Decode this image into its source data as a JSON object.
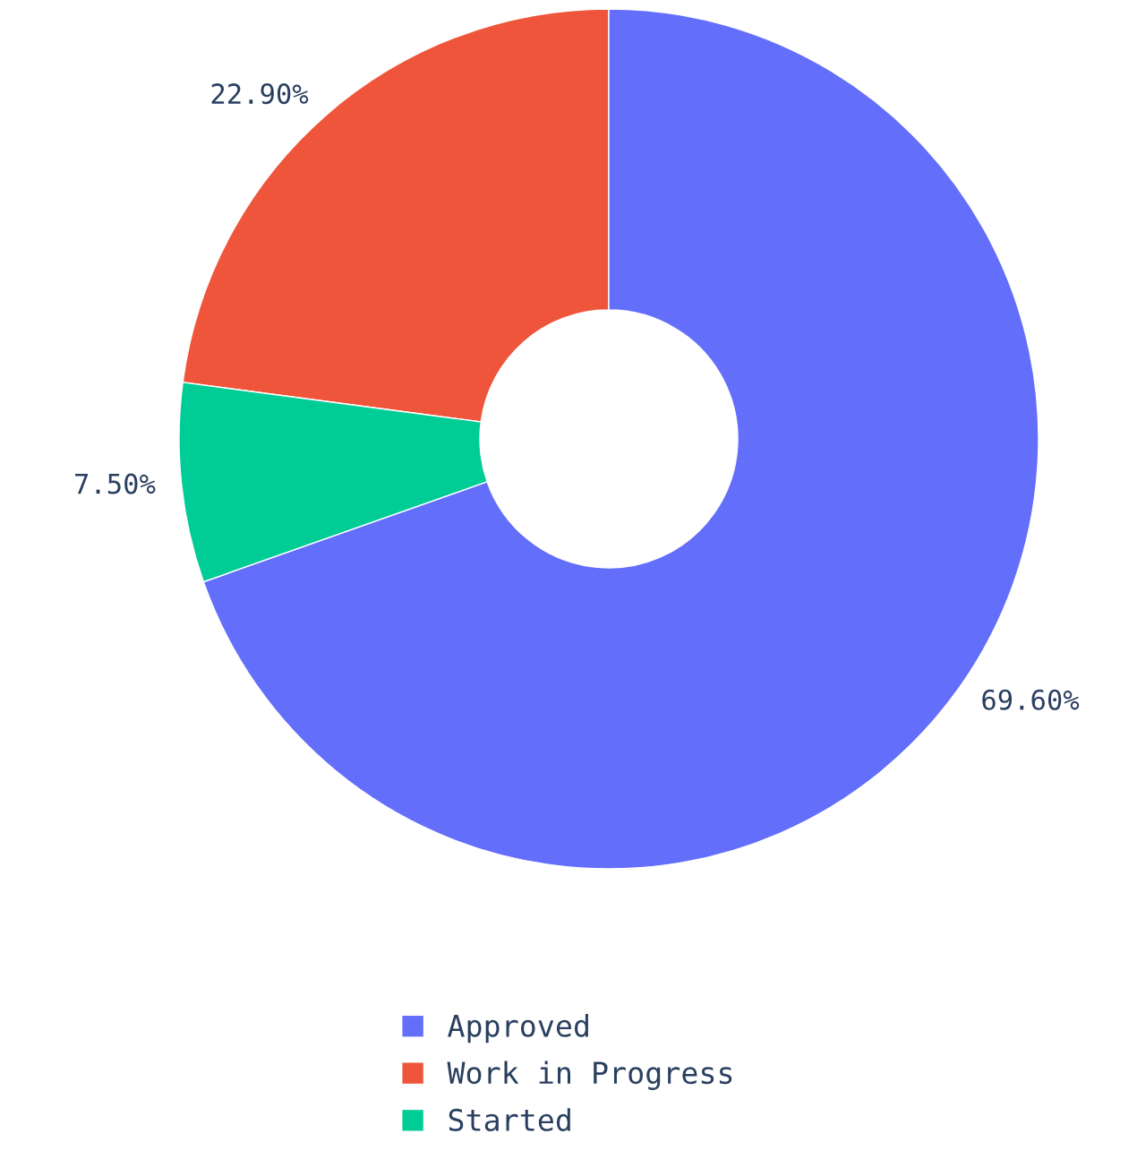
{
  "chart_data": {
    "type": "donut",
    "categories": [
      "Approved",
      "Work in Progress",
      "Started"
    ],
    "values": [
      69.6,
      22.9,
      7.5
    ],
    "colors": [
      "#636efa",
      "#ef553b",
      "#00cc96"
    ],
    "value_labels": [
      "69.60%",
      "22.90%",
      "7.50%"
    ],
    "legend": "bottom"
  }
}
